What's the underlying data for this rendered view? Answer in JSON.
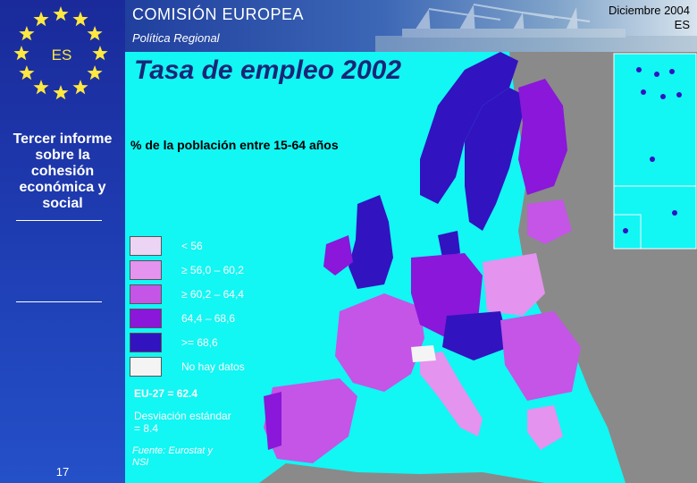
{
  "header": {
    "organization": "COMISIÓN EUROPEA",
    "subtitle": "Política Regional",
    "date": "Diciembre 2004",
    "lang": "ES"
  },
  "sidebar": {
    "country_code": "ES",
    "report_title": "Tercer informe sobre la cohesión económica y social",
    "page_number": "17"
  },
  "map": {
    "title": "Tasa de empleo 2002",
    "subtitle": "% de la población entre 15-64 años",
    "legend": [
      {
        "label": "< 56",
        "color": "#ecd4f5"
      },
      {
        "label": "≥ 56,0 – 60,2",
        "color": "#e493ee"
      },
      {
        "label": "≥ 60,2 – 64,4",
        "color": "#c455e6"
      },
      {
        "label": "64,4 – 68,6",
        "color": "#8a17d9"
      },
      {
        "label": ">= 68,6",
        "color": "#3213c0"
      },
      {
        "label": "No hay datos",
        "color": "#f4f4f4"
      }
    ],
    "eu_average": "EU-27 = 62.4",
    "std_dev": "Desviación estándar = 8.4",
    "source": "Fuente: Eurostat y NSI",
    "colors": {
      "sea": "#12f6f4",
      "non_eu": "#8a8a8a",
      "inset_bg": "#ffffff"
    }
  }
}
